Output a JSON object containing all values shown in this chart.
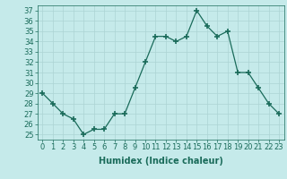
{
  "x": [
    0,
    1,
    2,
    3,
    4,
    5,
    6,
    7,
    8,
    9,
    10,
    11,
    12,
    13,
    14,
    15,
    16,
    17,
    18,
    19,
    20,
    21,
    22,
    23
  ],
  "y": [
    29,
    28,
    27,
    26.5,
    25,
    25.5,
    25.5,
    27,
    27,
    29.5,
    32,
    34.5,
    34.5,
    34,
    34.5,
    37,
    35.5,
    34.5,
    35,
    31,
    31,
    29.5,
    28,
    27
  ],
  "line_color": "#1a6b5a",
  "marker": "+",
  "marker_size": 4,
  "bg_color": "#c5eaea",
  "grid_color": "#acd4d4",
  "xlabel": "Humidex (Indice chaleur)",
  "xlim": [
    -0.5,
    23.5
  ],
  "ylim": [
    24.5,
    37.5
  ],
  "yticks": [
    25,
    26,
    27,
    28,
    29,
    30,
    31,
    32,
    33,
    34,
    35,
    36,
    37
  ],
  "xticks": [
    0,
    1,
    2,
    3,
    4,
    5,
    6,
    7,
    8,
    9,
    10,
    11,
    12,
    13,
    14,
    15,
    16,
    17,
    18,
    19,
    20,
    21,
    22,
    23
  ],
  "tick_label_fontsize": 6,
  "xlabel_fontsize": 7,
  "tick_color": "#1a6b5a",
  "axis_color": "#1a6b5a",
  "linewidth": 0.9,
  "marker_thickness": 1.2
}
